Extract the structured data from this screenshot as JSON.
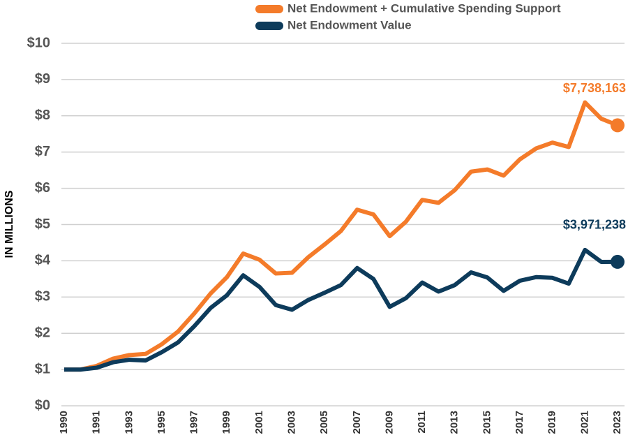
{
  "chart_data": {
    "type": "line",
    "ylabel": "IN MILLIONS",
    "categories": [
      "1990",
      null,
      "1991",
      null,
      "1993",
      null,
      "1995",
      null,
      "1997",
      null,
      "1999",
      null,
      "2001",
      null,
      "2003",
      null,
      "2005",
      null,
      "2007",
      null,
      "2009",
      null,
      "2011",
      null,
      "2013",
      null,
      "2015",
      null,
      "2017",
      null,
      "2019",
      null,
      "2021",
      null,
      "2023"
    ],
    "series": [
      {
        "name": "Net Endowment + Cumulative Spending Support",
        "color": "#f47b2a",
        "values": [
          1.0,
          1.0,
          1.1,
          1.3,
          1.4,
          1.43,
          1.7,
          2.05,
          2.55,
          3.1,
          3.55,
          4.2,
          4.03,
          3.65,
          3.67,
          4.1,
          4.45,
          4.82,
          5.41,
          5.28,
          4.68,
          5.08,
          5.68,
          5.6,
          5.95,
          6.46,
          6.52,
          6.35,
          6.8,
          7.1,
          7.26,
          7.14,
          8.37,
          7.92,
          7.738163
        ],
        "value_labels": [
          null,
          null,
          null,
          null,
          null,
          null,
          null,
          null,
          null,
          null,
          null,
          null,
          null,
          null,
          null,
          null,
          null,
          null,
          null,
          null,
          null,
          null,
          null,
          null,
          null,
          null,
          null,
          null,
          null,
          null,
          null,
          null,
          null,
          null,
          "$7,738,163"
        ]
      },
      {
        "name": "Net Endowment Value",
        "color": "#0d3b5b",
        "values": [
          1.0,
          1.0,
          1.05,
          1.2,
          1.27,
          1.25,
          1.48,
          1.75,
          2.2,
          2.7,
          3.05,
          3.6,
          3.28,
          2.78,
          2.65,
          2.92,
          3.12,
          3.33,
          3.8,
          3.5,
          2.73,
          2.97,
          3.4,
          3.15,
          3.33,
          3.68,
          3.54,
          3.17,
          3.45,
          3.55,
          3.53,
          3.37,
          4.3,
          3.97,
          3.971238
        ],
        "value_labels": [
          null,
          null,
          null,
          null,
          null,
          null,
          null,
          null,
          null,
          null,
          null,
          null,
          null,
          null,
          null,
          null,
          null,
          null,
          null,
          null,
          null,
          null,
          null,
          null,
          null,
          null,
          null,
          null,
          null,
          null,
          null,
          null,
          null,
          null,
          "$3,971,238"
        ]
      }
    ],
    "ylim": [
      0,
      10
    ],
    "yticks": [
      {
        "value": 0,
        "label": "$0"
      },
      {
        "value": 1,
        "label": "$1"
      },
      {
        "value": 2,
        "label": "$2"
      },
      {
        "value": 3,
        "label": "$3"
      },
      {
        "value": 4,
        "label": "$4"
      },
      {
        "value": 5,
        "label": "$5"
      },
      {
        "value": 6,
        "label": "$6"
      },
      {
        "value": 7,
        "label": "$7"
      },
      {
        "value": 8,
        "label": "$8"
      },
      {
        "value": 9,
        "label": "$9"
      },
      {
        "value": 10,
        "label": "$10"
      }
    ],
    "grid": true,
    "legend": "top"
  }
}
